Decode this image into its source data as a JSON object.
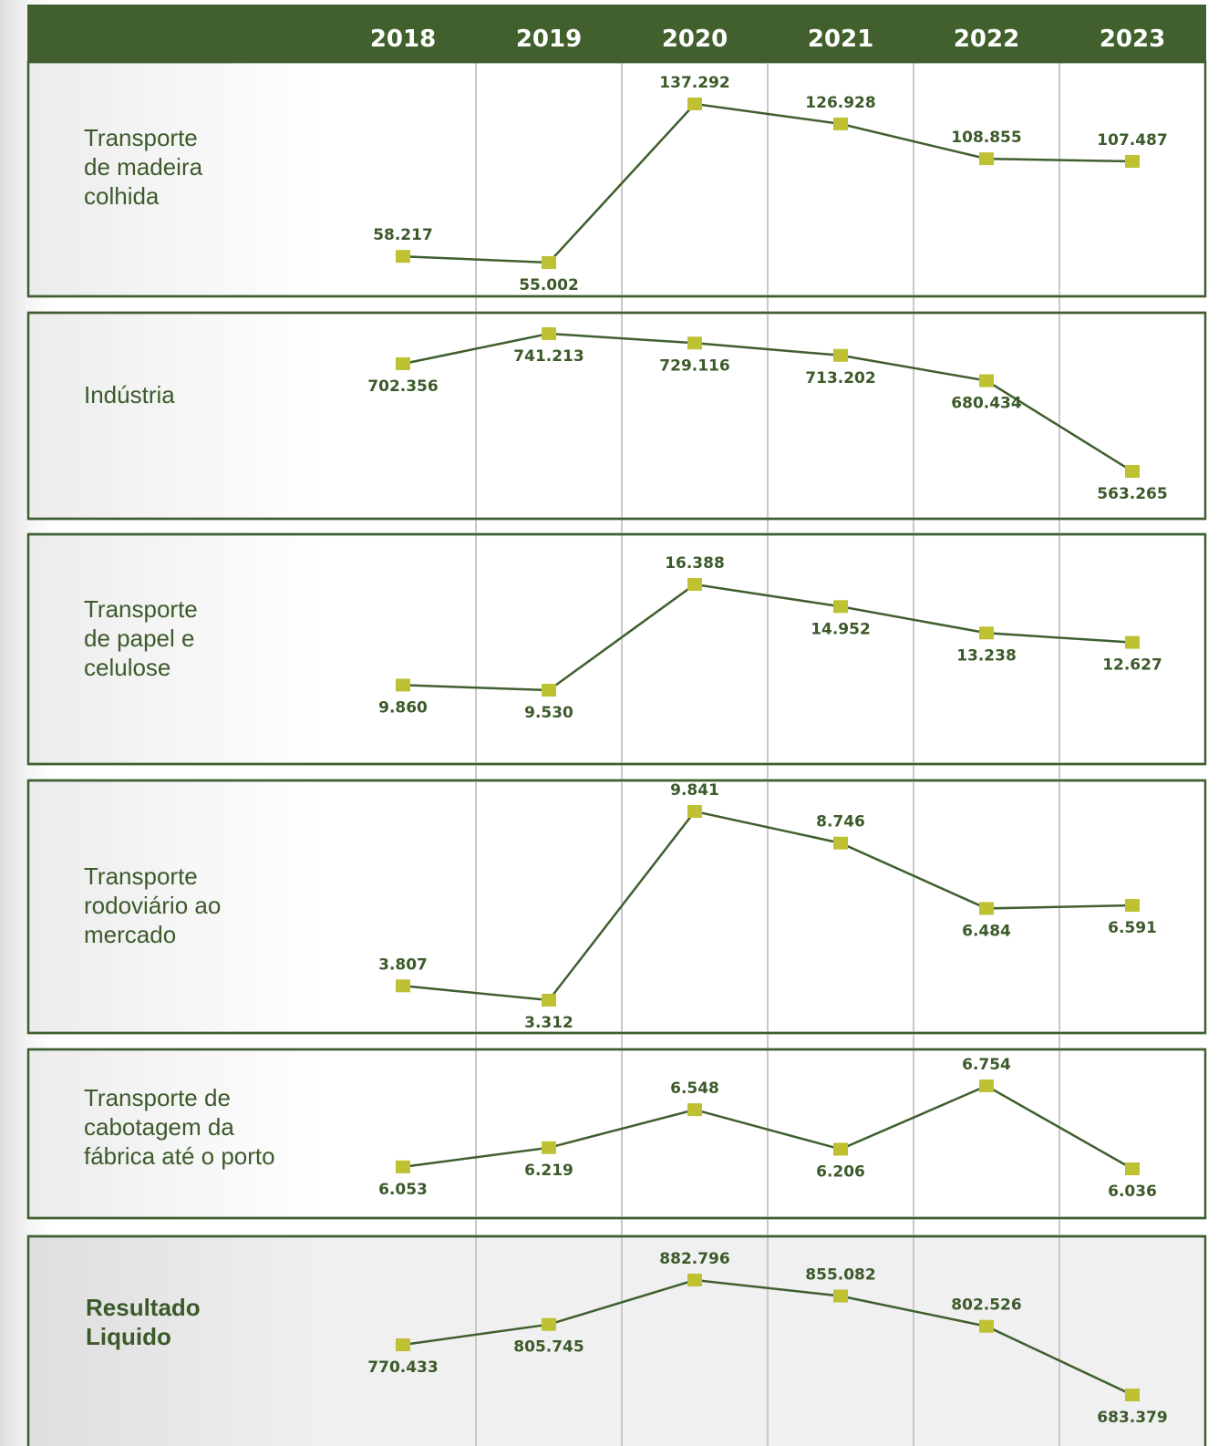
{
  "chart_data": {
    "type": "line",
    "categories": [
      "2018",
      "2019",
      "2020",
      "2021",
      "2022",
      "2023"
    ],
    "colors": {
      "header_bg": "#425f2e",
      "line": "#3f5f2f",
      "marker": "#bec132",
      "text": "#3c5a2a",
      "panel_border": "#3f5f2f",
      "gridline": "#c8c8c8"
    },
    "panels": [
      {
        "label_lines": [
          "Transporte",
          "de madeira",
          "colhida"
        ],
        "bold": false,
        "values": [
          58217,
          55002,
          137292,
          126928,
          108855,
          107487
        ],
        "value_labels": [
          "58.217",
          "55.002",
          "137.292",
          "126.928",
          "108.855",
          "107.487"
        ],
        "ylim": [
          50000,
          140000
        ]
      },
      {
        "label_lines": [
          "Indústria"
        ],
        "bold": false,
        "values": [
          702356,
          741213,
          729116,
          713202,
          680434,
          563265
        ],
        "value_labels": [
          "702.356",
          "741.213",
          "729.116",
          "713.202",
          "680.434",
          "563.265"
        ],
        "ylim": [
          555000,
          745000
        ]
      },
      {
        "label_lines": [
          "Transporte",
          "de papel e",
          "celulose"
        ],
        "bold": false,
        "values": [
          9860,
          9530,
          16388,
          14952,
          13238,
          12627
        ],
        "value_labels": [
          "9.860",
          "9.530",
          "16.388",
          "14.952",
          "13.238",
          "12.627"
        ],
        "ylim": [
          8000,
          17000
        ]
      },
      {
        "label_lines": [
          "Transporte",
          "rodoviário ao",
          "mercado"
        ],
        "bold": false,
        "values": [
          3807,
          3312,
          9841,
          8746,
          6484,
          6591
        ],
        "value_labels": [
          "3.807",
          "3.312",
          "9.841",
          "8.746",
          "6.484",
          "6.591"
        ],
        "ylim": [
          3000,
          10000
        ]
      },
      {
        "label_lines": [
          "Transporte de",
          "cabotagem da",
          "fábrica até o porto"
        ],
        "bold": false,
        "values": [
          6053,
          6219,
          6548,
          6206,
          6754,
          6036
        ],
        "value_labels": [
          "6.053",
          "6.219",
          "6.548",
          "6.206",
          "6.754",
          "6.036"
        ],
        "ylim": [
          6000,
          6800
        ]
      },
      {
        "label_lines": [
          "Resultado",
          "Liquido"
        ],
        "bold": true,
        "values": [
          770433,
          805745,
          882796,
          855082,
          802526,
          683379
        ],
        "value_labels": [
          "770.433",
          "805.745",
          "882.796",
          "855.082",
          "802.526",
          "683.379"
        ],
        "ylim": [
          675000,
          890000
        ]
      }
    ]
  }
}
